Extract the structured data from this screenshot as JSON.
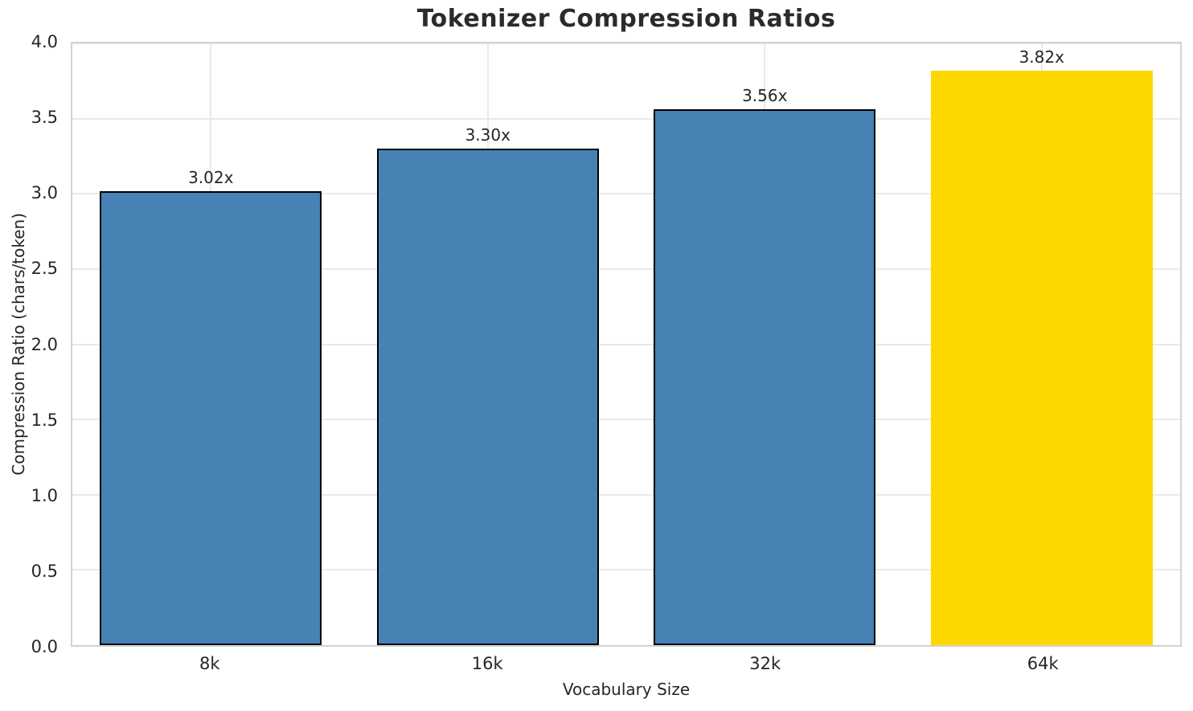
{
  "chart_data": {
    "type": "bar",
    "title": "Tokenizer Compression Ratios",
    "xlabel": "Vocabulary Size",
    "ylabel": "Compression Ratio (chars/token)",
    "categories": [
      "8k",
      "16k",
      "32k",
      "64k"
    ],
    "values": [
      3.02,
      3.3,
      3.56,
      3.82
    ],
    "bar_labels": [
      "3.02x",
      "3.30x",
      "3.56x",
      "3.82x"
    ],
    "series": [
      {
        "name": "Compression Ratio",
        "values": [
          3.02,
          3.3,
          3.56,
          3.82
        ]
      }
    ],
    "bar_colors": [
      "#4682B4",
      "#4682B4",
      "#4682B4",
      "#FFD700"
    ],
    "bar_edge_colors": [
      "#000000",
      "#000000",
      "#000000",
      "none"
    ],
    "highlight_index": 3,
    "bar_width_fraction": 0.8,
    "ylim": [
      0,
      4.0
    ],
    "ytick_values": [
      0.0,
      0.5,
      1.0,
      1.5,
      2.0,
      2.5,
      3.0,
      3.5,
      4.0
    ],
    "ytick_labels": [
      "0.0",
      "0.5",
      "1.0",
      "1.5",
      "2.0",
      "2.5",
      "3.0",
      "3.5",
      "4.0"
    ],
    "grid": "both",
    "legend": "none"
  },
  "colors": {
    "bar_blue": "#4682B4",
    "bar_gold": "#FFD700",
    "bar_edge": "#000000",
    "grid_line": "#e9e9e9",
    "spine": "#d2d2d2",
    "text": "#262626"
  }
}
